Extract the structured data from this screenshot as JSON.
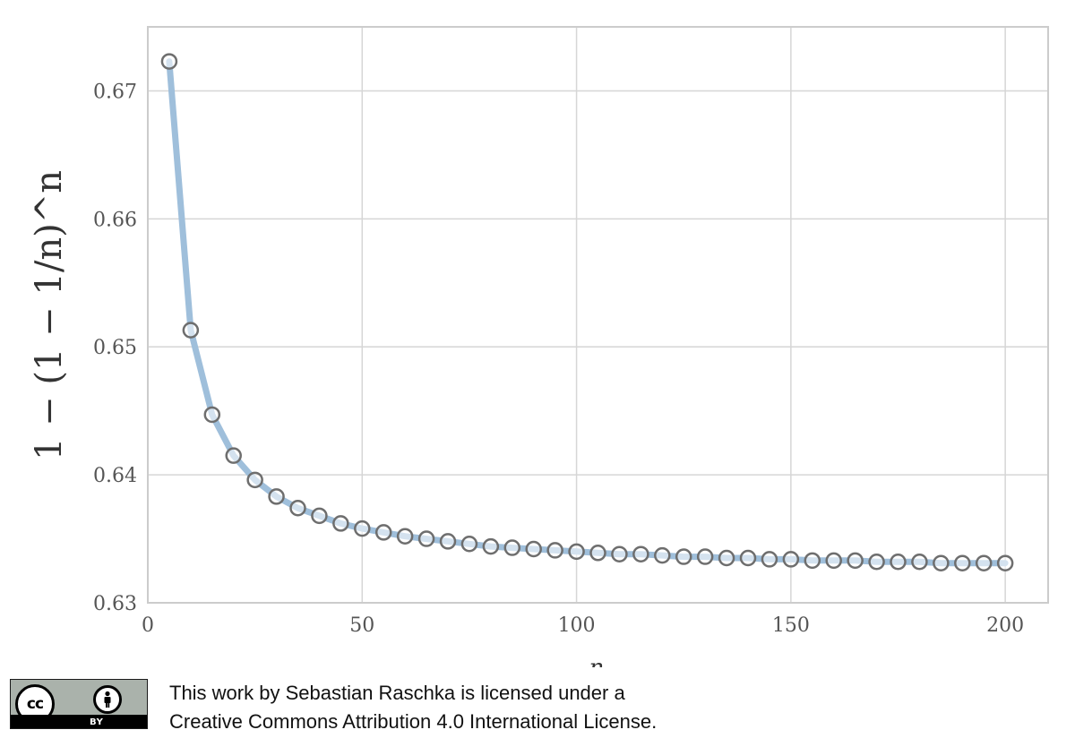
{
  "chart_data": {
    "type": "line",
    "title": "",
    "xlabel": "n",
    "ylabel": "1 − (1 − 1/n)^n",
    "xlim": [
      0,
      210
    ],
    "ylim": [
      0.63,
      0.675
    ],
    "x_ticks": [
      0,
      50,
      100,
      150,
      200
    ],
    "y_ticks": [
      0.63,
      0.64,
      0.65,
      0.66,
      0.67
    ],
    "x_tick_labels": [
      "0",
      "50",
      "100",
      "150",
      "200"
    ],
    "y_tick_labels": [
      "0.63",
      "0.64",
      "0.65",
      "0.66",
      "0.67"
    ],
    "grid": true,
    "legend": "none",
    "line_color": "#9fbfdb",
    "marker_edge_color": "#6e6e6e",
    "marker_face_color": "#ffffff",
    "series": [
      {
        "x": [
          5,
          10,
          15,
          20,
          25,
          30,
          35,
          40,
          45,
          50,
          55,
          60,
          65,
          70,
          75,
          80,
          85,
          90,
          95,
          100,
          105,
          110,
          115,
          120,
          125,
          130,
          135,
          140,
          145,
          150,
          155,
          160,
          165,
          170,
          175,
          180,
          185,
          190,
          195,
          200
        ],
        "y": [
          0.6723,
          0.6513,
          0.6447,
          0.6415,
          0.6396,
          0.6383,
          0.6374,
          0.6368,
          0.6362,
          0.6358,
          0.6355,
          0.6352,
          0.635,
          0.6348,
          0.6346,
          0.6344,
          0.6343,
          0.6342,
          0.6341,
          0.634,
          0.6339,
          0.6338,
          0.6338,
          0.6337,
          0.6336,
          0.6336,
          0.6335,
          0.6335,
          0.6334,
          0.6334,
          0.6333,
          0.6333,
          0.6333,
          0.6332,
          0.6332,
          0.6332,
          0.6331,
          0.6331,
          0.6331,
          0.6331
        ]
      }
    ]
  },
  "license": {
    "line1": "This work by Sebastian Raschka is licensed under a",
    "line2": "Creative Commons Attribution 4.0 International License.",
    "badge_cc": "cc",
    "badge_by": "BY"
  }
}
